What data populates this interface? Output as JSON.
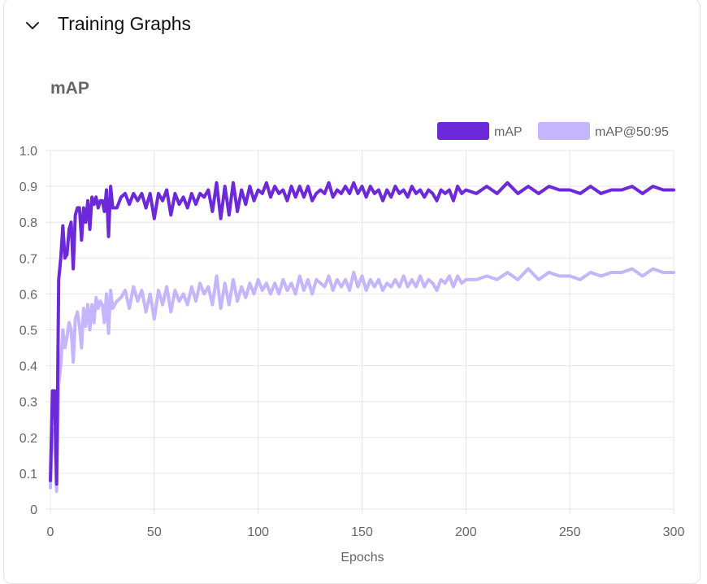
{
  "panel": {
    "title": "Training Graphs",
    "toggle_icon": "chevron-down-icon"
  },
  "chart_data": {
    "type": "line",
    "title": "mAP",
    "xlabel": "Epochs",
    "ylabel": "",
    "xlim": [
      0,
      300
    ],
    "ylim": [
      0,
      1.0
    ],
    "x_ticks": [
      "0",
      "50",
      "100",
      "150",
      "200",
      "250",
      "300"
    ],
    "y_ticks": [
      "0",
      "0.1",
      "0.2",
      "0.3",
      "0.4",
      "0.5",
      "0.6",
      "0.7",
      "0.8",
      "0.9",
      "1.0"
    ],
    "grid": true,
    "legend_position": "top-right",
    "series": [
      {
        "name": "mAP",
        "color": "#6d28d9",
        "x": [
          0,
          1,
          2,
          3,
          4,
          5,
          6,
          7,
          8,
          9,
          10,
          11,
          12,
          13,
          14,
          15,
          16,
          17,
          18,
          19,
          20,
          21,
          22,
          23,
          24,
          25,
          26,
          27,
          28,
          29,
          30,
          32,
          34,
          36,
          38,
          40,
          42,
          44,
          46,
          48,
          50,
          52,
          54,
          56,
          58,
          60,
          62,
          64,
          66,
          68,
          70,
          72,
          74,
          76,
          78,
          80,
          82,
          84,
          86,
          88,
          90,
          92,
          94,
          96,
          98,
          100,
          102,
          104,
          106,
          108,
          110,
          112,
          114,
          116,
          118,
          120,
          122,
          124,
          126,
          128,
          130,
          132,
          134,
          136,
          138,
          140,
          142,
          144,
          146,
          148,
          150,
          152,
          154,
          156,
          158,
          160,
          162,
          164,
          166,
          168,
          170,
          172,
          174,
          176,
          178,
          180,
          182,
          184,
          186,
          188,
          190,
          192,
          194,
          196,
          198,
          200,
          205,
          210,
          215,
          220,
          225,
          230,
          235,
          240,
          245,
          250,
          255,
          260,
          265,
          270,
          275,
          280,
          285,
          290,
          295,
          300
        ],
        "y": [
          0.08,
          0.33,
          0.33,
          0.07,
          0.64,
          0.7,
          0.79,
          0.7,
          0.71,
          0.78,
          0.8,
          0.67,
          0.82,
          0.84,
          0.84,
          0.75,
          0.84,
          0.8,
          0.86,
          0.78,
          0.87,
          0.85,
          0.87,
          0.84,
          0.86,
          0.86,
          0.83,
          0.89,
          0.76,
          0.9,
          0.84,
          0.84,
          0.87,
          0.88,
          0.85,
          0.88,
          0.86,
          0.88,
          0.84,
          0.88,
          0.81,
          0.88,
          0.86,
          0.89,
          0.82,
          0.88,
          0.85,
          0.87,
          0.84,
          0.88,
          0.85,
          0.88,
          0.87,
          0.89,
          0.83,
          0.91,
          0.81,
          0.9,
          0.82,
          0.91,
          0.83,
          0.89,
          0.85,
          0.9,
          0.86,
          0.89,
          0.88,
          0.91,
          0.87,
          0.9,
          0.88,
          0.89,
          0.86,
          0.9,
          0.87,
          0.9,
          0.87,
          0.9,
          0.86,
          0.88,
          0.89,
          0.88,
          0.91,
          0.87,
          0.89,
          0.88,
          0.9,
          0.88,
          0.91,
          0.88,
          0.9,
          0.87,
          0.9,
          0.88,
          0.89,
          0.86,
          0.89,
          0.87,
          0.9,
          0.88,
          0.89,
          0.87,
          0.9,
          0.88,
          0.89,
          0.87,
          0.89,
          0.88,
          0.86,
          0.89,
          0.88,
          0.89,
          0.86,
          0.9,
          0.88,
          0.89,
          0.88,
          0.9,
          0.88,
          0.91,
          0.88,
          0.9,
          0.88,
          0.9,
          0.89,
          0.89,
          0.88,
          0.9,
          0.88,
          0.89,
          0.89,
          0.9,
          0.88,
          0.9,
          0.89,
          0.89
        ]
      },
      {
        "name": "mAP@50:95",
        "color": "#c4b5fd",
        "x": [
          0,
          1,
          2,
          3,
          4,
          5,
          6,
          7,
          8,
          9,
          10,
          11,
          12,
          13,
          14,
          15,
          16,
          17,
          18,
          19,
          20,
          21,
          22,
          23,
          24,
          25,
          26,
          27,
          28,
          29,
          30,
          32,
          34,
          36,
          38,
          40,
          42,
          44,
          46,
          48,
          50,
          52,
          54,
          56,
          58,
          60,
          62,
          64,
          66,
          68,
          70,
          72,
          74,
          76,
          78,
          80,
          82,
          84,
          86,
          88,
          90,
          92,
          94,
          96,
          98,
          100,
          102,
          104,
          106,
          108,
          110,
          112,
          114,
          116,
          118,
          120,
          122,
          124,
          126,
          128,
          130,
          132,
          134,
          136,
          138,
          140,
          142,
          144,
          146,
          148,
          150,
          152,
          154,
          156,
          158,
          160,
          162,
          164,
          166,
          168,
          170,
          172,
          174,
          176,
          178,
          180,
          182,
          184,
          186,
          188,
          190,
          192,
          194,
          196,
          198,
          200,
          205,
          210,
          215,
          220,
          225,
          230,
          235,
          240,
          245,
          250,
          255,
          260,
          265,
          270,
          275,
          280,
          285,
          290,
          295,
          300
        ],
        "y": [
          0.06,
          0.22,
          0.22,
          0.05,
          0.35,
          0.4,
          0.5,
          0.45,
          0.48,
          0.52,
          0.5,
          0.41,
          0.53,
          0.55,
          0.51,
          0.45,
          0.56,
          0.51,
          0.57,
          0.5,
          0.57,
          0.52,
          0.59,
          0.56,
          0.58,
          0.57,
          0.52,
          0.6,
          0.49,
          0.61,
          0.56,
          0.58,
          0.59,
          0.61,
          0.56,
          0.62,
          0.58,
          0.61,
          0.55,
          0.6,
          0.53,
          0.61,
          0.57,
          0.62,
          0.55,
          0.61,
          0.58,
          0.6,
          0.57,
          0.62,
          0.58,
          0.63,
          0.6,
          0.62,
          0.57,
          0.65,
          0.56,
          0.63,
          0.57,
          0.64,
          0.58,
          0.62,
          0.59,
          0.63,
          0.6,
          0.64,
          0.61,
          0.63,
          0.6,
          0.63,
          0.6,
          0.64,
          0.61,
          0.63,
          0.6,
          0.65,
          0.61,
          0.64,
          0.6,
          0.64,
          0.63,
          0.62,
          0.65,
          0.61,
          0.64,
          0.62,
          0.64,
          0.61,
          0.66,
          0.62,
          0.65,
          0.61,
          0.64,
          0.62,
          0.64,
          0.61,
          0.63,
          0.62,
          0.64,
          0.62,
          0.65,
          0.62,
          0.64,
          0.62,
          0.65,
          0.62,
          0.64,
          0.63,
          0.61,
          0.64,
          0.63,
          0.65,
          0.62,
          0.65,
          0.63,
          0.64,
          0.64,
          0.65,
          0.64,
          0.66,
          0.64,
          0.67,
          0.64,
          0.66,
          0.65,
          0.65,
          0.64,
          0.66,
          0.65,
          0.66,
          0.66,
          0.67,
          0.65,
          0.67,
          0.66,
          0.66
        ]
      }
    ]
  }
}
